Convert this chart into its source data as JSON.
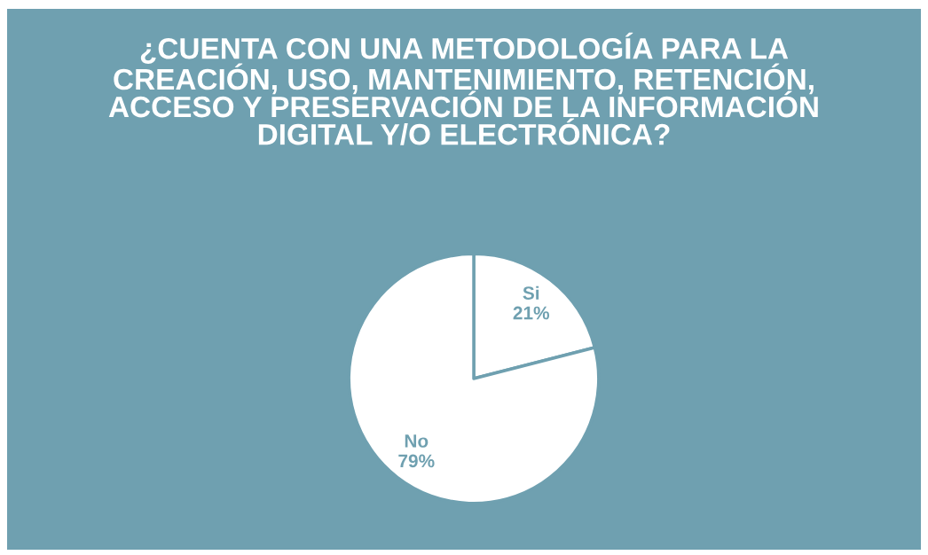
{
  "chart_data": {
    "type": "pie",
    "title": "¿CUENTA CON UNA METODOLOGÍA PARA LA CREACIÓN, USO, MANTENIMIENTO, RETENCIÓN, ACCESO Y PRESERVACIÓN DE LA INFORMACIÓN DIGITAL Y/O ELECTRÓNICA?",
    "categories": [
      "Si",
      "No"
    ],
    "values": [
      21,
      79
    ],
    "value_labels": [
      "21%",
      "79%"
    ],
    "colors": [
      "#ffffff",
      "#ffffff"
    ]
  }
}
